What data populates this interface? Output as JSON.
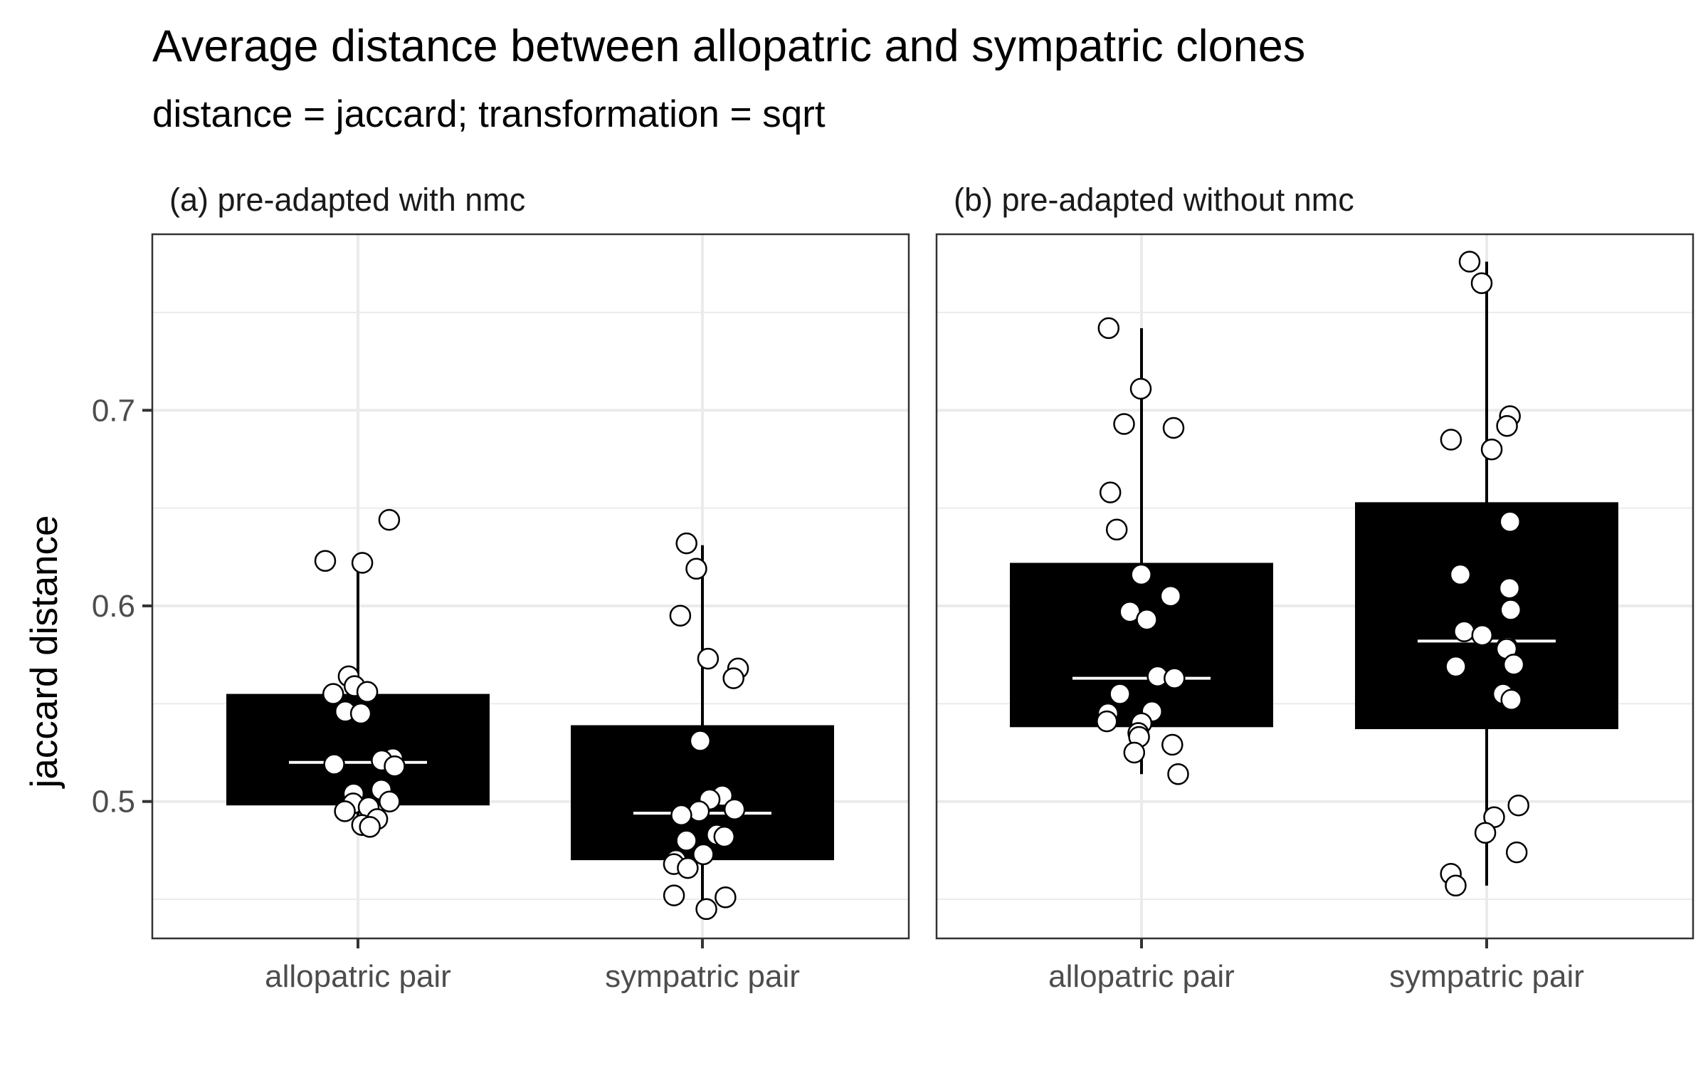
{
  "chart_data": {
    "type": "box",
    "title": "Average distance between allopatric and sympatric clones",
    "subtitle": "distance = jaccard; transformation = sqrt",
    "ylabel": "jaccard distance",
    "xlabel": "",
    "ylim": [
      0.43,
      0.79
    ],
    "yticks": [
      0.5,
      0.6,
      0.7
    ],
    "ytick_labels": [
      "0.5",
      "0.6",
      "0.7"
    ],
    "categories": [
      "allopatric pair",
      "sympatric pair"
    ],
    "grid": true,
    "colors": {
      "box": "#000000",
      "median": "#ffffff",
      "point_fill": "#ffffff",
      "point_stroke": "#000000",
      "grid": "#ebebeb",
      "panel_border": "#333333"
    },
    "panels": [
      {
        "label": "(a) pre-adapted with nmc",
        "boxes": [
          {
            "category": "allopatric pair",
            "q1": 0.498,
            "median": 0.52,
            "q3": 0.555,
            "whisker_low": 0.487,
            "whisker_high": 0.622,
            "points": [
              0.644,
              0.623,
              0.622,
              0.564,
              0.559,
              0.556,
              0.555,
              0.546,
              0.545,
              0.522,
              0.521,
              0.519,
              0.518,
              0.506,
              0.504,
              0.5,
              0.499,
              0.497,
              0.495,
              0.491,
              0.488,
              0.487
            ]
          },
          {
            "category": "sympatric pair",
            "q1": 0.47,
            "median": 0.494,
            "q3": 0.539,
            "whisker_low": 0.445,
            "whisker_high": 0.631,
            "points": [
              0.632,
              0.619,
              0.595,
              0.573,
              0.568,
              0.563,
              0.531,
              0.503,
              0.501,
              0.496,
              0.495,
              0.493,
              0.483,
              0.482,
              0.48,
              0.473,
              0.47,
              0.468,
              0.466,
              0.452,
              0.451,
              0.445
            ]
          }
        ]
      },
      {
        "label": "(b) pre-adapted without nmc",
        "boxes": [
          {
            "category": "allopatric pair",
            "q1": 0.538,
            "median": 0.563,
            "q3": 0.622,
            "whisker_low": 0.514,
            "whisker_high": 0.742,
            "points": [
              0.742,
              0.711,
              0.693,
              0.691,
              0.658,
              0.639,
              0.616,
              0.605,
              0.597,
              0.593,
              0.564,
              0.563,
              0.555,
              0.546,
              0.545,
              0.541,
              0.54,
              0.535,
              0.533,
              0.529,
              0.525,
              0.514
            ]
          },
          {
            "category": "sympatric pair",
            "q1": 0.537,
            "median": 0.582,
            "q3": 0.653,
            "whisker_low": 0.457,
            "whisker_high": 0.776,
            "points": [
              0.776,
              0.765,
              0.697,
              0.692,
              0.685,
              0.68,
              0.643,
              0.616,
              0.609,
              0.598,
              0.587,
              0.585,
              0.579,
              0.578,
              0.57,
              0.569,
              0.555,
              0.552,
              0.498,
              0.492,
              0.484,
              0.474,
              0.463,
              0.457
            ]
          }
        ]
      }
    ]
  }
}
